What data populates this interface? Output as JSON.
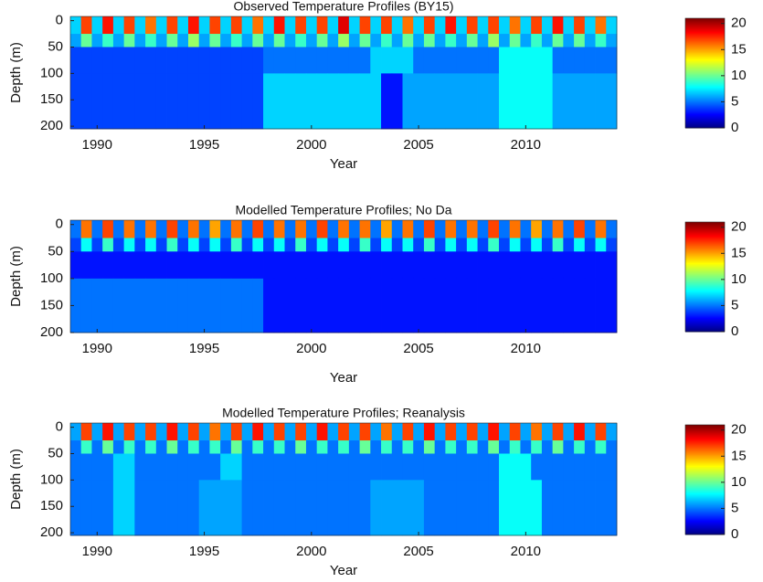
{
  "chart_data": [
    {
      "type": "heatmap",
      "title": "Observed Temperature Profiles (BY15)",
      "xlabel": "Year",
      "ylabel": "Depth (m)",
      "colormap": "jet",
      "x_edges": [
        1988.75,
        1989.25,
        1989.75,
        1990.25,
        1990.75,
        1991.25,
        1991.75,
        1992.25,
        1992.75,
        1993.25,
        1993.75,
        1994.25,
        1994.75,
        1995.25,
        1995.75,
        1996.25,
        1996.75,
        1997.25,
        1997.75,
        1998.25,
        1998.75,
        1999.25,
        1999.75,
        2000.25,
        2000.75,
        2001.25,
        2001.75,
        2002.25,
        2002.75,
        2003.25,
        2003.75,
        2004.25,
        2004.75,
        2005.25,
        2005.75,
        2006.25,
        2006.75,
        2007.25,
        2007.75,
        2008.25,
        2008.75,
        2009.25,
        2009.75,
        2010.25,
        2010.75,
        2011.25,
        2011.75,
        2012.25,
        2012.75,
        2013.25,
        2013.75,
        2014.25
      ],
      "y_edges": [
        -8,
        25,
        50,
        100,
        205
      ],
      "z": [
        [
          7,
          17,
          7,
          18,
          7,
          17,
          7,
          16,
          7,
          17,
          7,
          18,
          7,
          17,
          7,
          17,
          7,
          16,
          7,
          18,
          7,
          17,
          7,
          17,
          7,
          19,
          7,
          17,
          7,
          17,
          7,
          16,
          7,
          17,
          7,
          18,
          7,
          17,
          7,
          17,
          7,
          16,
          7,
          17,
          7,
          18,
          7,
          17,
          7,
          16,
          7
        ],
        [
          6,
          10,
          6,
          9,
          6,
          10,
          6,
          9,
          6,
          10,
          6,
          11,
          6,
          10,
          6,
          9,
          6,
          10,
          6,
          10,
          6,
          9,
          6,
          10,
          6,
          11,
          6,
          10,
          6,
          9,
          6,
          10,
          6,
          10,
          6,
          9,
          6,
          10,
          6,
          11,
          6,
          10,
          6,
          9,
          6,
          10,
          6,
          10,
          6,
          9,
          6
        ],
        [
          4,
          4,
          4,
          4,
          4,
          4,
          4,
          4,
          4,
          4,
          4,
          4,
          4,
          4,
          4,
          4,
          4,
          4,
          5,
          5,
          5,
          5,
          5,
          5,
          5,
          5,
          5,
          5,
          7,
          7,
          7,
          7,
          5,
          5,
          5,
          5,
          5,
          5,
          5,
          5,
          8,
          8,
          8,
          8,
          8,
          5,
          5,
          5,
          5,
          5,
          5
        ],
        [
          4,
          4,
          4,
          4,
          4,
          4,
          4,
          4,
          4,
          4,
          4,
          4,
          4,
          4,
          4,
          4,
          4,
          4,
          7,
          7,
          7,
          7,
          7,
          7,
          7,
          7,
          7,
          7,
          7,
          3,
          3,
          6,
          6,
          6,
          6,
          6,
          6,
          6,
          6,
          6,
          8,
          8,
          8,
          8,
          8,
          6,
          6,
          6,
          6,
          6,
          6
        ]
      ],
      "zlim": [
        0,
        21
      ],
      "zticks": [
        0,
        5,
        10,
        15,
        20
      ],
      "xlim": [
        1988.75,
        2014.25
      ],
      "xticks": [
        1990,
        1995,
        2000,
        2005,
        2010
      ],
      "ylim": [
        -8,
        205
      ],
      "y_reversed": true,
      "yticks": [
        0,
        50,
        100,
        150,
        200
      ]
    },
    {
      "type": "heatmap",
      "title": "Modelled Temperature Profiles; No Da",
      "xlabel": "Year",
      "ylabel": "Depth (m)",
      "colormap": "jet",
      "x_edges": [
        1988.75,
        1989.25,
        1989.75,
        1990.25,
        1990.75,
        1991.25,
        1991.75,
        1992.25,
        1992.75,
        1993.25,
        1993.75,
        1994.25,
        1994.75,
        1995.25,
        1995.75,
        1996.25,
        1996.75,
        1997.25,
        1997.75,
        1998.25,
        1998.75,
        1999.25,
        1999.75,
        2000.25,
        2000.75,
        2001.25,
        2001.75,
        2002.25,
        2002.75,
        2003.25,
        2003.75,
        2004.25,
        2004.75,
        2005.25,
        2005.75,
        2006.25,
        2006.75,
        2007.25,
        2007.75,
        2008.25,
        2008.75,
        2009.25,
        2009.75,
        2010.25,
        2010.75,
        2011.25,
        2011.75,
        2012.25,
        2012.75,
        2013.25,
        2013.75,
        2014.25
      ],
      "y_edges": [
        -8,
        25,
        50,
        100,
        200
      ],
      "z": [
        [
          5,
          16,
          5,
          17,
          5,
          16,
          5,
          16,
          5,
          17,
          5,
          16,
          5,
          15,
          5,
          16,
          5,
          17,
          5,
          16,
          5,
          16,
          5,
          17,
          5,
          16,
          5,
          16,
          5,
          15,
          5,
          16,
          5,
          17,
          5,
          16,
          5,
          16,
          5,
          17,
          5,
          16,
          5,
          15,
          5,
          16,
          5,
          17,
          5,
          16,
          5
        ],
        [
          4,
          8,
          4,
          9,
          4,
          8,
          4,
          8,
          4,
          9,
          4,
          8,
          4,
          8,
          4,
          9,
          4,
          8,
          4,
          8,
          4,
          9,
          4,
          8,
          4,
          8,
          4,
          9,
          4,
          8,
          4,
          8,
          4,
          9,
          4,
          8,
          4,
          8,
          4,
          9,
          4,
          8,
          4,
          8,
          4,
          9,
          4,
          8,
          4,
          8,
          4
        ],
        [
          3,
          3,
          3,
          3,
          3,
          3,
          3,
          3,
          3,
          3,
          3,
          3,
          3,
          3,
          3,
          3,
          3,
          3,
          3,
          3,
          3,
          3,
          3,
          3,
          3,
          3,
          3,
          3,
          3,
          3,
          3,
          3,
          3,
          3,
          3,
          3,
          3,
          3,
          3,
          3,
          3,
          3,
          3,
          3,
          3,
          3,
          3,
          3,
          3,
          3,
          3
        ],
        [
          5,
          5,
          5,
          5,
          5,
          5,
          5,
          5,
          5,
          5,
          5,
          5,
          5,
          5,
          5,
          5,
          5,
          5,
          3,
          3,
          3,
          3,
          3,
          3,
          3,
          3,
          3,
          3,
          3,
          3,
          3,
          3,
          3,
          3,
          3,
          3,
          3,
          3,
          3,
          3,
          3,
          3,
          3,
          3,
          3,
          3,
          3,
          3,
          3,
          3,
          3
        ]
      ],
      "zlim": [
        0,
        21
      ],
      "zticks": [
        0,
        5,
        10,
        15,
        20
      ],
      "xlim": [
        1988.75,
        2014.25
      ],
      "xticks": [
        1990,
        1995,
        2000,
        2005,
        2010
      ],
      "ylim": [
        -8,
        200
      ],
      "y_reversed": true,
      "yticks": [
        0,
        50,
        100,
        150,
        200
      ]
    },
    {
      "type": "heatmap",
      "title": "Modelled Temperature Profiles; Reanalysis",
      "xlabel": "Year",
      "ylabel": "Depth (m)",
      "colormap": "jet",
      "x_edges": [
        1988.75,
        1989.25,
        1989.75,
        1990.25,
        1990.75,
        1991.25,
        1991.75,
        1992.25,
        1992.75,
        1993.25,
        1993.75,
        1994.25,
        1994.75,
        1995.25,
        1995.75,
        1996.25,
        1996.75,
        1997.25,
        1997.75,
        1998.25,
        1998.75,
        1999.25,
        1999.75,
        2000.25,
        2000.75,
        2001.25,
        2001.75,
        2002.25,
        2002.75,
        2003.25,
        2003.75,
        2004.25,
        2004.75,
        2005.25,
        2005.75,
        2006.25,
        2006.75,
        2007.25,
        2007.75,
        2008.25,
        2008.75,
        2009.25,
        2009.75,
        2010.25,
        2010.75,
        2011.25,
        2011.75,
        2012.25,
        2012.75,
        2013.25,
        2013.75,
        2014.25
      ],
      "y_edges": [
        -8,
        25,
        50,
        100,
        205
      ],
      "z": [
        [
          6,
          17,
          6,
          18,
          6,
          17,
          6,
          17,
          6,
          18,
          6,
          17,
          6,
          16,
          6,
          17,
          6,
          18,
          6,
          17,
          6,
          17,
          6,
          18,
          6,
          17,
          6,
          17,
          6,
          16,
          6,
          17,
          6,
          18,
          6,
          17,
          6,
          17,
          6,
          18,
          6,
          17,
          6,
          16,
          6,
          17,
          6,
          18,
          6,
          17,
          6
        ],
        [
          5,
          9,
          5,
          10,
          5,
          9,
          5,
          9,
          5,
          10,
          5,
          9,
          5,
          9,
          5,
          10,
          5,
          9,
          5,
          9,
          5,
          10,
          5,
          9,
          5,
          9,
          5,
          10,
          5,
          9,
          5,
          9,
          5,
          10,
          5,
          9,
          5,
          9,
          5,
          10,
          5,
          9,
          5,
          9,
          5,
          10,
          5,
          9,
          5,
          9,
          5
        ],
        [
          5,
          5,
          5,
          5,
          7,
          7,
          5,
          5,
          5,
          5,
          5,
          5,
          5,
          5,
          7,
          7,
          5,
          5,
          5,
          5,
          5,
          5,
          5,
          5,
          5,
          5,
          5,
          5,
          5,
          5,
          5,
          5,
          5,
          5,
          5,
          5,
          5,
          5,
          5,
          5,
          8,
          8,
          8,
          5,
          5,
          5,
          5,
          5,
          5,
          5,
          5
        ],
        [
          5,
          5,
          5,
          5,
          7,
          7,
          5,
          5,
          5,
          5,
          5,
          5,
          6,
          6,
          6,
          6,
          5,
          5,
          5,
          5,
          5,
          5,
          5,
          5,
          5,
          5,
          5,
          5,
          6,
          6,
          6,
          6,
          6,
          5,
          5,
          5,
          5,
          5,
          5,
          5,
          8,
          8,
          8,
          8,
          5,
          5,
          5,
          5,
          5,
          5,
          5
        ]
      ],
      "zlim": [
        0,
        21
      ],
      "zticks": [
        0,
        5,
        10,
        15,
        20
      ],
      "xlim": [
        1988.75,
        2014.25
      ],
      "xticks": [
        1990,
        1995,
        2000,
        2005,
        2010
      ],
      "ylim": [
        -8,
        205
      ],
      "y_reversed": true,
      "yticks": [
        0,
        50,
        100,
        150,
        200
      ]
    }
  ]
}
